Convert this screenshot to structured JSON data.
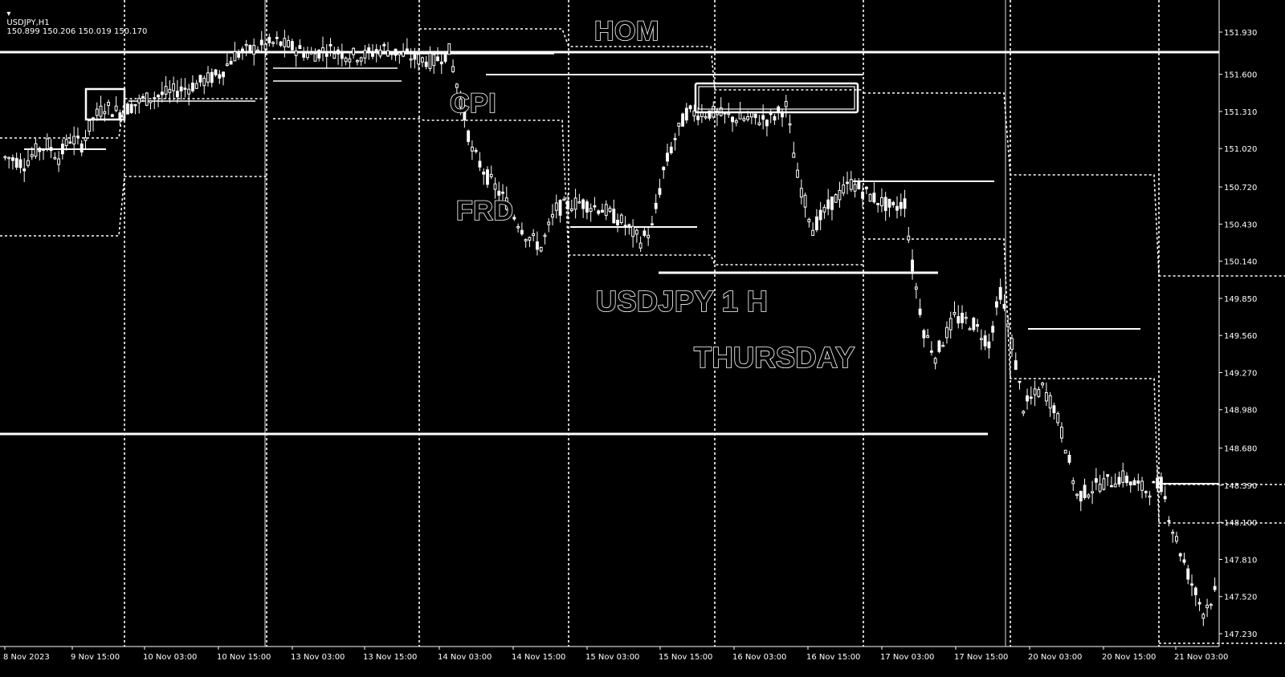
{
  "header": {
    "symbol": "USDJPY,H1",
    "ohlc": "150.899 150.206 150.019 150.170"
  },
  "annotations": {
    "hom": "HOM",
    "cpi": "CPI",
    "frd": "FRD",
    "title": "USDJPY 1 H",
    "day": "THURSDAY"
  },
  "colors": {
    "background": "#000000",
    "foreground": "#ffffff"
  },
  "chart_data": {
    "type": "candlestick",
    "xlabel": "",
    "ylabel": "",
    "ylim": [
      147.1,
      152.1
    ],
    "yticks": [
      151.93,
      151.6,
      151.31,
      151.02,
      150.72,
      150.43,
      150.14,
      149.85,
      149.56,
      149.27,
      148.98,
      148.68,
      148.39,
      148.1,
      147.81,
      147.52,
      147.23
    ],
    "xticks": [
      "8 Nov 2023",
      "9 Nov 15:00",
      "10 Nov 03:00",
      "10 Nov 15:00",
      "13 Nov 03:00",
      "13 Nov 15:00",
      "14 Nov 03:00",
      "14 Nov 15:00",
      "15 Nov 03:00",
      "15 Nov 15:00",
      "16 Nov 03:00",
      "16 Nov 15:00",
      "17 Nov 03:00",
      "17 Nov 15:00",
      "20 Nov 03:00",
      "20 Nov 15:00",
      "21 Nov 03:00"
    ],
    "grid": true,
    "series_path": [
      [
        150.95,
        2
      ],
      [
        150.9,
        4
      ],
      [
        151.0,
        3
      ],
      [
        151.05,
        3
      ],
      [
        150.95,
        3
      ],
      [
        151.1,
        3
      ],
      [
        151.05,
        3
      ],
      [
        151.25,
        3
      ],
      [
        151.35,
        3
      ],
      [
        151.3,
        4
      ],
      [
        151.4,
        6
      ],
      [
        151.45,
        6
      ],
      [
        151.5,
        6
      ],
      [
        151.55,
        4
      ],
      [
        151.6,
        4
      ],
      [
        151.75,
        4
      ],
      [
        151.8,
        5
      ],
      [
        151.85,
        6
      ],
      [
        151.8,
        5
      ],
      [
        151.75,
        4
      ],
      [
        151.8,
        4
      ],
      [
        151.75,
        6
      ],
      [
        151.75,
        4
      ],
      [
        151.8,
        5
      ],
      [
        151.75,
        5
      ],
      [
        151.72,
        4
      ],
      [
        151.7,
        4
      ],
      [
        151.78,
        4
      ],
      [
        151.4,
        3
      ],
      [
        151.0,
        3
      ],
      [
        150.8,
        4
      ],
      [
        150.6,
        5
      ],
      [
        150.35,
        5
      ],
      [
        150.25,
        4
      ],
      [
        150.55,
        4
      ],
      [
        150.6,
        6
      ],
      [
        150.55,
        6
      ],
      [
        150.45,
        5
      ],
      [
        150.3,
        5
      ],
      [
        150.4,
        3
      ],
      [
        150.85,
        3
      ],
      [
        151.1,
        3
      ],
      [
        151.3,
        3
      ],
      [
        151.3,
        6
      ],
      [
        151.25,
        8
      ],
      [
        151.25,
        8
      ],
      [
        151.35,
        4
      ],
      [
        150.8,
        3
      ],
      [
        150.4,
        4
      ],
      [
        150.6,
        5
      ],
      [
        150.75,
        5
      ],
      [
        150.65,
        5
      ],
      [
        150.55,
        6
      ],
      [
        150.6,
        3
      ],
      [
        150.1,
        2
      ],
      [
        149.6,
        3
      ],
      [
        149.4,
        3
      ],
      [
        149.7,
        5
      ],
      [
        149.65,
        5
      ],
      [
        149.5,
        4
      ],
      [
        149.9,
        3
      ],
      [
        149.5,
        3
      ],
      [
        149.0,
        3
      ],
      [
        149.15,
        5
      ],
      [
        149.0,
        3
      ],
      [
        148.7,
        3
      ],
      [
        148.3,
        3
      ],
      [
        148.4,
        6
      ],
      [
        148.45,
        6
      ],
      [
        148.35,
        6
      ],
      [
        148.4,
        4
      ],
      [
        148.05,
        3
      ],
      [
        147.7,
        4
      ],
      [
        147.4,
        4
      ],
      [
        147.55,
        3
      ]
    ]
  }
}
